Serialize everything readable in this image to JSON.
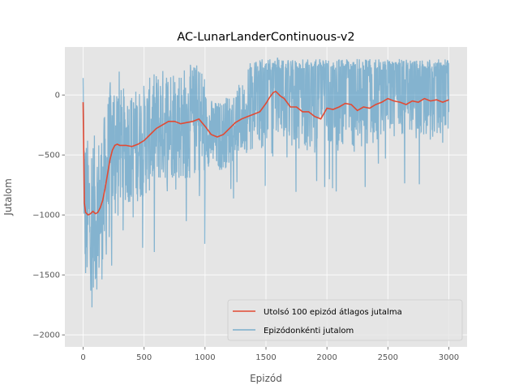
{
  "chart_data": {
    "type": "line",
    "title": "AC-LunarLanderContinuous-v2",
    "xlabel": "Epizód",
    "ylabel": "Jutalom",
    "xlim": [
      -150,
      3150
    ],
    "ylim": [
      -2100,
      400
    ],
    "x_ticks": [
      0,
      500,
      1000,
      1500,
      2000,
      2500,
      3000
    ],
    "y_ticks": [
      -2000,
      -1500,
      -1000,
      -500,
      0
    ],
    "x_tick_labels": [
      "0",
      "500",
      "1000",
      "1500",
      "2000",
      "2500",
      "3000"
    ],
    "y_tick_labels": [
      "−2000",
      "−1500",
      "−1000",
      "−500",
      "0"
    ],
    "grid": true,
    "legend_position": "lower-right",
    "series": [
      {
        "name": "Utolsó 100 epizód átlagos jutalma",
        "color": "#E24A33",
        "x": [
          0,
          10,
          20,
          40,
          60,
          80,
          100,
          120,
          140,
          160,
          180,
          200,
          220,
          240,
          260,
          280,
          300,
          350,
          400,
          450,
          500,
          550,
          600,
          650,
          700,
          750,
          800,
          850,
          900,
          950,
          1000,
          1050,
          1100,
          1150,
          1200,
          1250,
          1300,
          1350,
          1400,
          1450,
          1500,
          1530,
          1560,
          1580,
          1600,
          1620,
          1650,
          1700,
          1750,
          1800,
          1850,
          1900,
          1950,
          2000,
          2050,
          2100,
          2150,
          2200,
          2250,
          2300,
          2350,
          2400,
          2450,
          2500,
          2550,
          2600,
          2650,
          2700,
          2750,
          2800,
          2850,
          2900,
          2950,
          3000
        ],
        "y": [
          -60,
          -900,
          -980,
          -1000,
          -990,
          -970,
          -990,
          -980,
          -940,
          -880,
          -780,
          -660,
          -540,
          -460,
          -420,
          -410,
          -420,
          -420,
          -430,
          -410,
          -380,
          -330,
          -280,
          -250,
          -220,
          -220,
          -240,
          -230,
          -220,
          -200,
          -260,
          -330,
          -350,
          -330,
          -280,
          -230,
          -200,
          -180,
          -160,
          -140,
          -70,
          -20,
          20,
          30,
          10,
          -10,
          -30,
          -100,
          -100,
          -140,
          -140,
          -180,
          -200,
          -110,
          -120,
          -100,
          -70,
          -80,
          -130,
          -100,
          -110,
          -80,
          -60,
          -30,
          -50,
          -60,
          -80,
          -50,
          -60,
          -30,
          -50,
          -40,
          -60,
          -40
        ]
      },
      {
        "name": "Epizódonkénti jutalom",
        "color": "#348ABD"
      }
    ]
  }
}
